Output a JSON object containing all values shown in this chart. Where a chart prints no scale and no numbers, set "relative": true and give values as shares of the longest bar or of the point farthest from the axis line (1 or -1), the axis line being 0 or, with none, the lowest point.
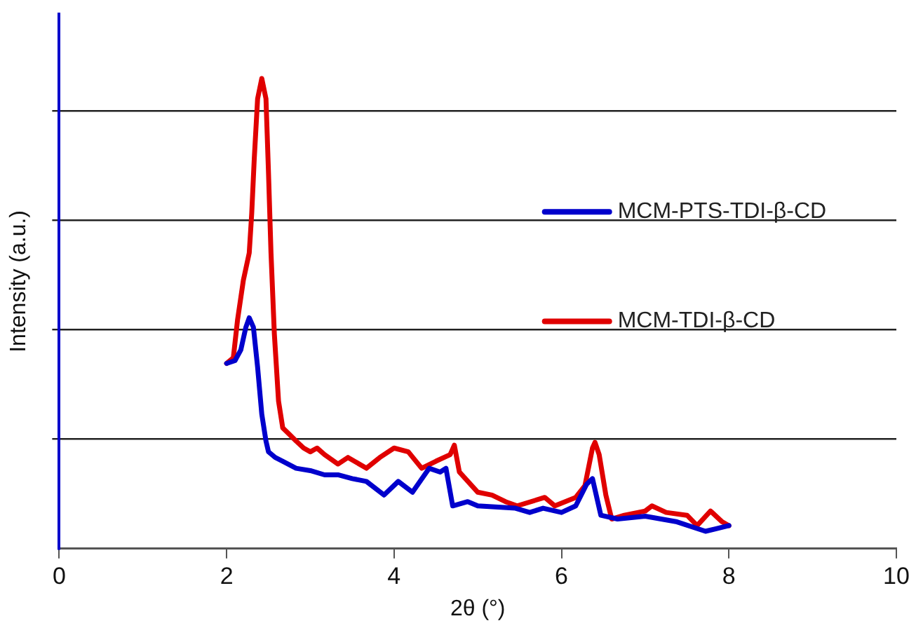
{
  "chart_data": {
    "type": "line",
    "xlabel": "2θ (°)",
    "ylabel": "Intensity (a.u.)",
    "relative": true,
    "xlim": [
      0,
      10
    ],
    "xticks": [
      0,
      2,
      4,
      6,
      8,
      10
    ],
    "grid": "y",
    "legend": "right",
    "marker": "none",
    "line_style": "solid",
    "series": [
      {
        "name": "MCM-PTS-TDI-β-CD",
        "color": "#0000cc",
        "x": [
          2.0,
          2.1,
          2.17,
          2.23,
          2.27,
          2.32,
          2.37,
          2.42,
          2.47,
          2.5,
          2.58,
          2.67,
          2.83,
          3.0,
          3.17,
          3.33,
          3.5,
          3.67,
          3.88,
          4.05,
          4.22,
          4.42,
          4.55,
          4.62,
          4.7,
          4.88,
          5.0,
          5.45,
          5.62,
          5.78,
          6.0,
          6.17,
          6.3,
          6.37,
          6.47,
          6.67,
          7.0,
          7.38,
          7.72,
          8.0
        ],
        "values": [
          0.394,
          0.4,
          0.423,
          0.471,
          0.491,
          0.471,
          0.386,
          0.286,
          0.229,
          0.206,
          0.194,
          0.186,
          0.171,
          0.166,
          0.157,
          0.157,
          0.149,
          0.143,
          0.114,
          0.143,
          0.12,
          0.171,
          0.163,
          0.171,
          0.091,
          0.1,
          0.091,
          0.086,
          0.077,
          0.086,
          0.077,
          0.091,
          0.137,
          0.149,
          0.071,
          0.063,
          0.069,
          0.057,
          0.037,
          0.049
        ]
      },
      {
        "name": "MCM-TDI-β-CD",
        "color": "#e00000",
        "x": [
          2.0,
          2.08,
          2.13,
          2.2,
          2.27,
          2.3,
          2.33,
          2.37,
          2.42,
          2.47,
          2.5,
          2.53,
          2.57,
          2.62,
          2.67,
          2.75,
          2.83,
          2.92,
          3.0,
          3.08,
          3.17,
          3.33,
          3.45,
          3.67,
          3.83,
          4.0,
          4.17,
          4.33,
          4.5,
          4.67,
          4.72,
          4.78,
          5.0,
          5.17,
          5.33,
          5.47,
          5.8,
          5.92,
          6.17,
          6.28,
          6.37,
          6.4,
          6.45,
          6.53,
          6.6,
          6.75,
          7.0,
          7.08,
          7.25,
          7.5,
          7.62,
          7.78,
          7.92,
          8.0
        ],
        "values": [
          0.394,
          0.406,
          0.486,
          0.571,
          0.629,
          0.714,
          0.829,
          0.957,
          1.0,
          0.957,
          0.8,
          0.629,
          0.457,
          0.314,
          0.257,
          0.243,
          0.229,
          0.214,
          0.206,
          0.214,
          0.2,
          0.18,
          0.194,
          0.171,
          0.194,
          0.214,
          0.206,
          0.171,
          0.186,
          0.2,
          0.22,
          0.163,
          0.12,
          0.114,
          0.1,
          0.091,
          0.109,
          0.091,
          0.109,
          0.134,
          0.214,
          0.226,
          0.2,
          0.114,
          0.063,
          0.071,
          0.08,
          0.091,
          0.077,
          0.071,
          0.049,
          0.08,
          0.057,
          0.049
        ]
      }
    ]
  }
}
